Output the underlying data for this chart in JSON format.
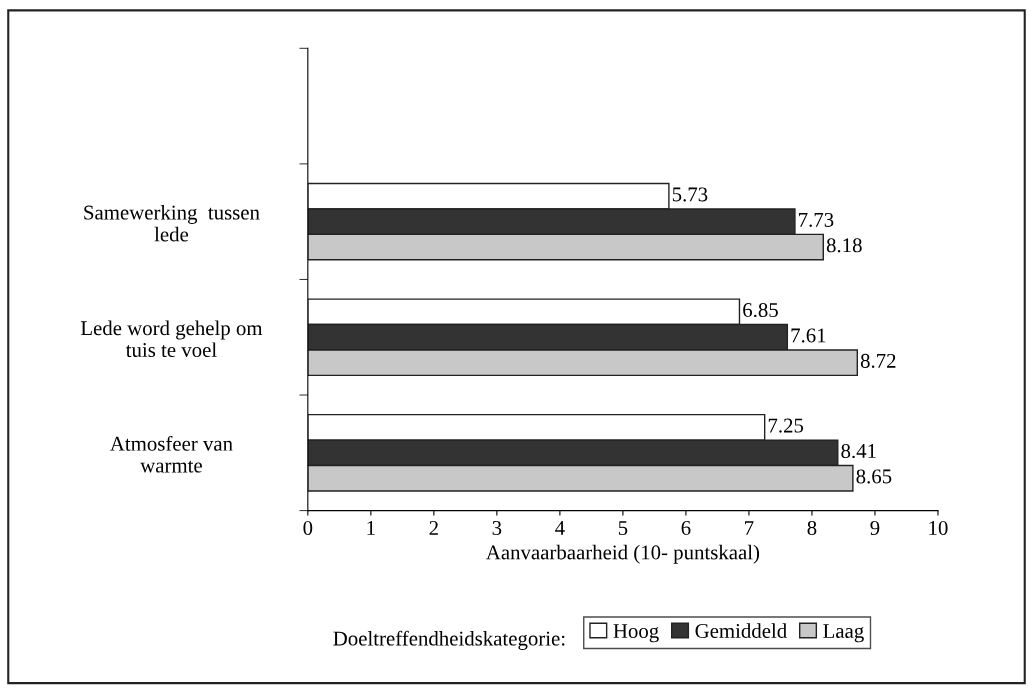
{
  "chart_data": {
    "type": "bar",
    "orientation": "horizontal",
    "categories": [
      null,
      "Samewerking  tussen\nlede",
      "Lede word gehelp om\ntuis te voel",
      "Atmosfeer van\nwarmte"
    ],
    "series": [
      {
        "name": "Hoog",
        "color": "#ffffff",
        "values": [
          null,
          5.73,
          6.85,
          7.25
        ]
      },
      {
        "name": "Gemiddeld",
        "color": "#333333",
        "values": [
          null,
          7.73,
          7.61,
          8.41
        ]
      },
      {
        "name": "Laag",
        "color": "#c8c8c8",
        "values": [
          null,
          8.18,
          8.72,
          8.65
        ]
      }
    ],
    "xlabel": "Aanvaarbaarheid (10- puntskaal)",
    "legend_title": "Doeltreffendheidskategorie:",
    "legend": "bottom",
    "xlim": [
      0,
      10
    ],
    "xticks": [
      0,
      1,
      2,
      3,
      4,
      5,
      6,
      7,
      8,
      9,
      10
    ],
    "data_labels": true,
    "grid": false
  }
}
